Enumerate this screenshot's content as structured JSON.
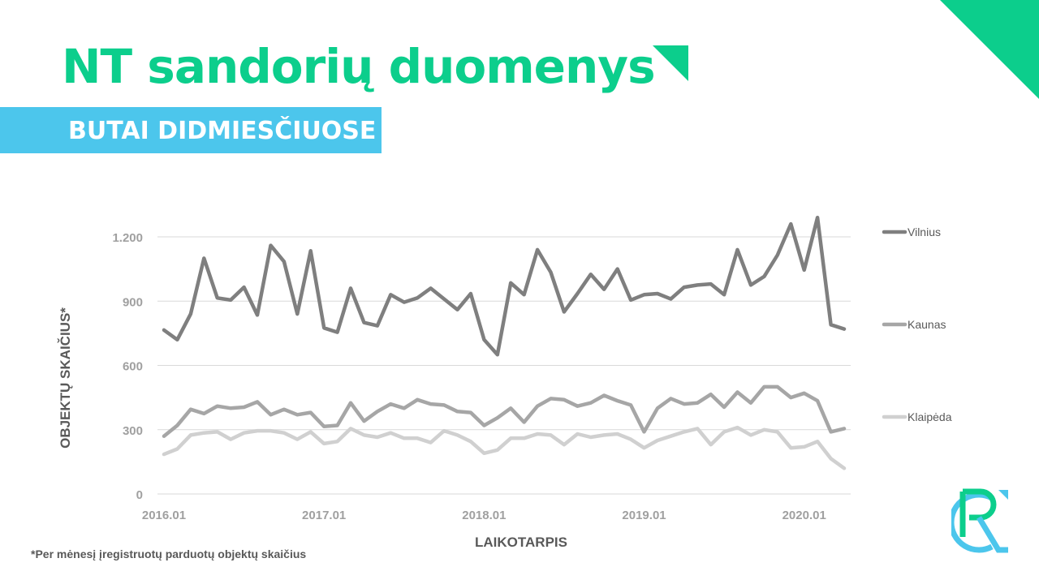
{
  "slide": {
    "title": "NT sandorių duomenys",
    "subtitle": "BUTAI DIDMIESČIUOSE",
    "footnote": "*Per mėnesį įregistruotų parduotų objektų skaičius"
  },
  "colors": {
    "accent_green": "#0cce8c",
    "accent_blue": "#4cc6ec",
    "vilnius": "#7f7f7f",
    "kaunas": "#a6a6a6",
    "klaipeda": "#d0d0d0",
    "axis_text": "#a0a0a0",
    "gridline": "#d9d9d9"
  },
  "icons": {
    "corner": "triangle-decoration-icon",
    "title_mark": "triangle-mark-icon",
    "logo": "rc-logo-icon"
  },
  "chart_data": {
    "type": "line",
    "title": "",
    "xlabel": "LAIKOTARPIS",
    "ylabel": "OBJEKTŲ SKAIČIUS*",
    "ylim": [
      0,
      1200
    ],
    "yticks": [
      0,
      300,
      600,
      900,
      1200
    ],
    "ytick_labels": [
      "0",
      "300",
      "600",
      "900",
      "1.200"
    ],
    "xtick_labels": [
      "2016.01",
      "2017.01",
      "2018.01",
      "2019.01",
      "2020.01"
    ],
    "xtick_indices": [
      0,
      12,
      24,
      36,
      48
    ],
    "grid": true,
    "legend_position": "right",
    "x": [
      "2016.01",
      "2016.02",
      "2016.03",
      "2016.04",
      "2016.05",
      "2016.06",
      "2016.07",
      "2016.08",
      "2016.09",
      "2016.10",
      "2016.11",
      "2016.12",
      "2017.01",
      "2017.02",
      "2017.03",
      "2017.04",
      "2017.05",
      "2017.06",
      "2017.07",
      "2017.08",
      "2017.09",
      "2017.10",
      "2017.11",
      "2017.12",
      "2018.01",
      "2018.02",
      "2018.03",
      "2018.04",
      "2018.05",
      "2018.06",
      "2018.07",
      "2018.08",
      "2018.09",
      "2018.10",
      "2018.11",
      "2018.12",
      "2019.01",
      "2019.02",
      "2019.03",
      "2019.04",
      "2019.05",
      "2019.06",
      "2019.07",
      "2019.08",
      "2019.09",
      "2019.10",
      "2019.11",
      "2019.12",
      "2020.01",
      "2020.02",
      "2020.03",
      "2020.04"
    ],
    "series": [
      {
        "name": "Vilnius",
        "color": "#7f7f7f",
        "values": [
          765,
          720,
          840,
          1100,
          915,
          905,
          965,
          835,
          1160,
          1085,
          840,
          1135,
          775,
          755,
          960,
          800,
          785,
          930,
          895,
          915,
          960,
          910,
          860,
          935,
          720,
          650,
          985,
          930,
          1140,
          1035,
          850,
          935,
          1025,
          955,
          1050,
          905,
          930,
          935,
          910,
          965,
          975,
          980,
          930,
          1140,
          975,
          1015,
          1115,
          1260,
          1045,
          1290,
          790,
          770
        ]
      },
      {
        "name": "Kaunas",
        "color": "#a6a6a6",
        "values": [
          270,
          320,
          395,
          375,
          410,
          400,
          405,
          430,
          370,
          395,
          370,
          380,
          315,
          320,
          425,
          340,
          385,
          420,
          400,
          440,
          420,
          415,
          385,
          380,
          320,
          355,
          400,
          335,
          410,
          445,
          440,
          410,
          425,
          460,
          435,
          415,
          290,
          400,
          445,
          420,
          425,
          465,
          405,
          475,
          425,
          500,
          500,
          450,
          470,
          435,
          290,
          305
        ]
      },
      {
        "name": "Klaipėda",
        "color": "#d0d0d0",
        "values": [
          185,
          210,
          275,
          285,
          290,
          255,
          285,
          295,
          295,
          285,
          255,
          290,
          235,
          245,
          305,
          275,
          265,
          285,
          260,
          260,
          240,
          295,
          275,
          245,
          190,
          205,
          260,
          260,
          280,
          275,
          230,
          280,
          265,
          275,
          280,
          255,
          215,
          250,
          270,
          290,
          305,
          230,
          290,
          310,
          275,
          300,
          290,
          215,
          220,
          245,
          165,
          120
        ]
      }
    ]
  }
}
